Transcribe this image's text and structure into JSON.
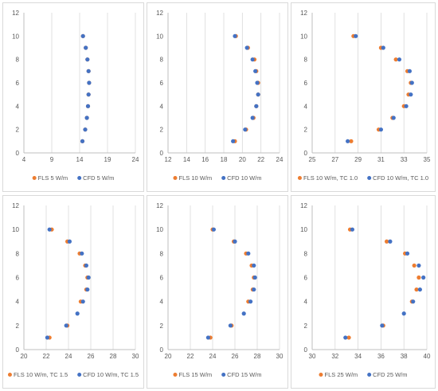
{
  "colors": {
    "fls": "#ED7D31",
    "cfd": "#4472C4",
    "axis": "#bfbfbf",
    "grid": "#d9d9d9"
  },
  "chart_data": [
    {
      "type": "scatter",
      "xlim": [
        4,
        24
      ],
      "xticks": [
        4,
        9,
        14,
        19,
        24
      ],
      "ylim": [
        0,
        12
      ],
      "yticks": [
        0,
        2,
        4,
        6,
        8,
        10,
        12
      ],
      "grid": "vertical",
      "legend_position": "bottom",
      "series": [
        {
          "name": "FLS 5 W/m",
          "color": "#ED7D31",
          "points": [
            [
              14.5,
              1
            ],
            [
              15.0,
              2
            ],
            [
              15.3,
              3
            ],
            [
              15.5,
              4
            ],
            [
              15.6,
              5
            ],
            [
              15.7,
              6
            ],
            [
              15.6,
              7
            ],
            [
              15.4,
              8
            ],
            [
              15.1,
              9
            ],
            [
              14.6,
              10
            ]
          ]
        },
        {
          "name": "CFD 5 W/m",
          "color": "#4472C4",
          "points": [
            [
              14.5,
              1
            ],
            [
              15.0,
              2
            ],
            [
              15.3,
              3
            ],
            [
              15.5,
              4
            ],
            [
              15.6,
              5
            ],
            [
              15.7,
              6
            ],
            [
              15.6,
              7
            ],
            [
              15.4,
              8
            ],
            [
              15.1,
              9
            ],
            [
              14.6,
              10
            ]
          ]
        }
      ]
    },
    {
      "type": "scatter",
      "xlim": [
        12,
        24
      ],
      "xticks": [
        12,
        14,
        16,
        18,
        20,
        22,
        24
      ],
      "ylim": [
        0,
        12
      ],
      "yticks": [
        0,
        2,
        4,
        6,
        8,
        10,
        12
      ],
      "grid": "vertical",
      "legend_position": "bottom",
      "series": [
        {
          "name": "FLS 10 W/m",
          "color": "#ED7D31",
          "points": [
            [
              19.2,
              1
            ],
            [
              20.4,
              2
            ],
            [
              21.2,
              3
            ],
            [
              21.5,
              4
            ],
            [
              21.7,
              5
            ],
            [
              21.7,
              6
            ],
            [
              21.5,
              7
            ],
            [
              21.3,
              8
            ],
            [
              20.6,
              9
            ],
            [
              19.3,
              10
            ]
          ]
        },
        {
          "name": "CFD 10 W/m",
          "color": "#4472C4",
          "points": [
            [
              19.0,
              1
            ],
            [
              20.3,
              2
            ],
            [
              21.1,
              3
            ],
            [
              21.5,
              4
            ],
            [
              21.7,
              5
            ],
            [
              21.6,
              6
            ],
            [
              21.4,
              7
            ],
            [
              21.1,
              8
            ],
            [
              20.5,
              9
            ],
            [
              19.2,
              10
            ]
          ]
        }
      ]
    },
    {
      "type": "scatter",
      "xlim": [
        25,
        35
      ],
      "xticks": [
        25,
        27,
        29,
        31,
        33,
        35
      ],
      "ylim": [
        0,
        12
      ],
      "yticks": [
        0,
        2,
        4,
        6,
        8,
        10,
        12
      ],
      "grid": "vertical",
      "legend_position": "bottom",
      "series": [
        {
          "name": "FLS 10 W/m, TC 1.0",
          "color": "#ED7D31",
          "points": [
            [
              28.4,
              1
            ],
            [
              30.8,
              2
            ],
            [
              32.0,
              3
            ],
            [
              33.0,
              4
            ],
            [
              33.4,
              5
            ],
            [
              33.6,
              6
            ],
            [
              33.3,
              7
            ],
            [
              32.3,
              8
            ],
            [
              31.0,
              9
            ],
            [
              28.6,
              10
            ]
          ]
        },
        {
          "name": "CFD 10 W/m, TC 1.0",
          "color": "#4472C4",
          "points": [
            [
              28.1,
              1
            ],
            [
              31.0,
              2
            ],
            [
              32.1,
              3
            ],
            [
              33.2,
              4
            ],
            [
              33.6,
              5
            ],
            [
              33.7,
              6
            ],
            [
              33.5,
              7
            ],
            [
              32.6,
              8
            ],
            [
              31.2,
              9
            ],
            [
              28.8,
              10
            ]
          ]
        }
      ]
    },
    {
      "type": "scatter",
      "xlim": [
        20,
        30
      ],
      "xticks": [
        20,
        22,
        24,
        26,
        28,
        30
      ],
      "ylim": [
        0,
        12
      ],
      "yticks": [
        0,
        2,
        4,
        6,
        8,
        10,
        12
      ],
      "grid": "vertical",
      "legend_position": "bottom",
      "series": [
        {
          "name": "FLS 10 W/m, TC 1.5",
          "color": "#ED7D31",
          "points": [
            [
              22.3,
              1
            ],
            [
              23.9,
              2
            ],
            [
              25.1,
              4
            ],
            [
              25.6,
              5
            ],
            [
              25.7,
              6
            ],
            [
              25.5,
              7
            ],
            [
              25.0,
              8
            ],
            [
              23.9,
              9
            ],
            [
              22.5,
              10
            ]
          ]
        },
        {
          "name": "CFD 10 W/m, TC 1.5",
          "color": "#4472C4",
          "points": [
            [
              22.1,
              1
            ],
            [
              23.8,
              2
            ],
            [
              24.8,
              3
            ],
            [
              25.3,
              4
            ],
            [
              25.7,
              5
            ],
            [
              25.8,
              6
            ],
            [
              25.6,
              7
            ],
            [
              25.2,
              8
            ],
            [
              24.1,
              9
            ],
            [
              22.3,
              10
            ]
          ]
        }
      ]
    },
    {
      "type": "scatter",
      "xlim": [
        20,
        30
      ],
      "xticks": [
        20,
        22,
        24,
        26,
        28,
        30
      ],
      "ylim": [
        0,
        12
      ],
      "yticks": [
        0,
        2,
        4,
        6,
        8,
        10,
        12
      ],
      "grid": "vertical",
      "legend_position": "bottom",
      "series": [
        {
          "name": "FLS 15 W/m",
          "color": "#ED7D31",
          "points": [
            [
              23.8,
              1
            ],
            [
              25.7,
              2
            ],
            [
              27.2,
              4
            ],
            [
              27.6,
              5
            ],
            [
              27.7,
              6
            ],
            [
              27.5,
              7
            ],
            [
              27.0,
              8
            ],
            [
              25.9,
              9
            ],
            [
              24.0,
              10
            ]
          ]
        },
        {
          "name": "CFD 15 W/m",
          "color": "#4472C4",
          "points": [
            [
              23.6,
              1
            ],
            [
              25.6,
              2
            ],
            [
              26.8,
              3
            ],
            [
              27.4,
              4
            ],
            [
              27.7,
              5
            ],
            [
              27.8,
              6
            ],
            [
              27.7,
              7
            ],
            [
              27.2,
              8
            ],
            [
              26.0,
              9
            ],
            [
              24.1,
              10
            ]
          ]
        }
      ]
    },
    {
      "type": "scatter",
      "xlim": [
        30,
        40
      ],
      "xticks": [
        30,
        32,
        34,
        36,
        38,
        40
      ],
      "ylim": [
        0,
        12
      ],
      "yticks": [
        0,
        2,
        4,
        6,
        8,
        10,
        12
      ],
      "grid": "vertical",
      "legend_position": "bottom",
      "series": [
        {
          "name": "FLS 25 W/m",
          "color": "#ED7D31",
          "points": [
            [
              33.2,
              1
            ],
            [
              36.2,
              2
            ],
            [
              38.7,
              4
            ],
            [
              39.1,
              5
            ],
            [
              39.3,
              6
            ],
            [
              38.9,
              7
            ],
            [
              38.1,
              8
            ],
            [
              36.5,
              9
            ],
            [
              33.3,
              10
            ]
          ]
        },
        {
          "name": "CFD 25 W/m",
          "color": "#4472C4",
          "points": [
            [
              32.9,
              1
            ],
            [
              36.1,
              2
            ],
            [
              38.0,
              3
            ],
            [
              38.8,
              4
            ],
            [
              39.4,
              5
            ],
            [
              39.7,
              6
            ],
            [
              39.3,
              7
            ],
            [
              38.3,
              8
            ],
            [
              36.8,
              9
            ],
            [
              33.5,
              10
            ]
          ]
        }
      ]
    }
  ]
}
